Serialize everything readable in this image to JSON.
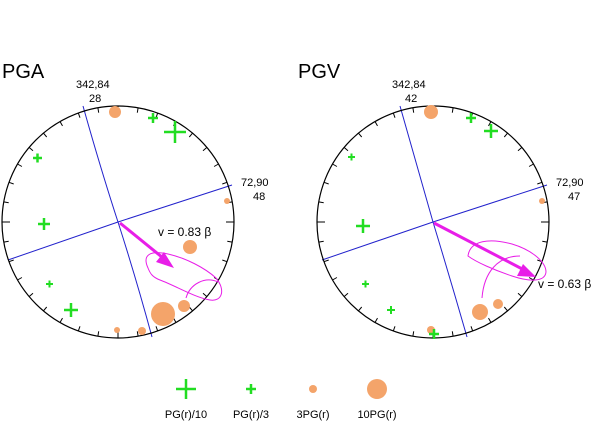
{
  "panels": [
    {
      "title": "PGA",
      "strike_label_1": "342,84",
      "strike_label_1_value": "28",
      "strike_label_2": "72,90",
      "strike_label_2_value": "48",
      "velocity_label": "v = 0.83 β"
    },
    {
      "title": "PGV",
      "strike_label_1": "342,84",
      "strike_label_1_value": "42",
      "strike_label_2": "72,90",
      "strike_label_2_value": "47",
      "velocity_label": "v = 0.63 β"
    }
  ],
  "legend": [
    {
      "label": "PG(r)/10",
      "symbol": "large-plus"
    },
    {
      "label": "PG(r)/3",
      "symbol": "small-plus"
    },
    {
      "label": "3PG(r)",
      "symbol": "small-circle"
    },
    {
      "label": "10PG(r)",
      "symbol": "large-circle"
    }
  ],
  "colors": {
    "plus": "#22dd22",
    "circle": "#f4a46a",
    "arrow": "#e81ee8",
    "planes": "#2222cc",
    "outline": "#000000"
  }
}
